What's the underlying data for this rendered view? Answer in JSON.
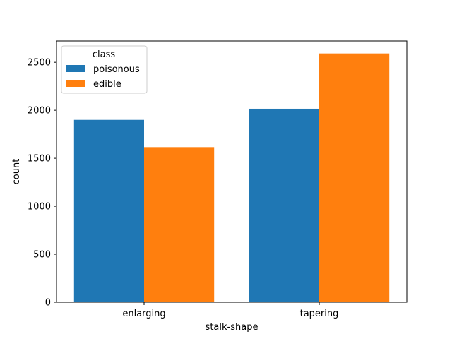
{
  "chart_data": {
    "type": "bar",
    "categories": [
      "enlarging",
      "tapering"
    ],
    "series": [
      {
        "name": "poisonous",
        "values": [
          1900,
          2016
        ],
        "color": "#1f77b4"
      },
      {
        "name": "edible",
        "values": [
          1616,
          2592
        ],
        "color": "#ff7f0e"
      }
    ],
    "title": "",
    "xlabel": "stalk-shape",
    "ylabel": "count",
    "ylim": [
      0,
      2722
    ],
    "yticks": [
      0,
      500,
      1000,
      1500,
      2000,
      2500
    ],
    "grid": false,
    "legend": {
      "title": "class",
      "placement": "top-left"
    }
  }
}
